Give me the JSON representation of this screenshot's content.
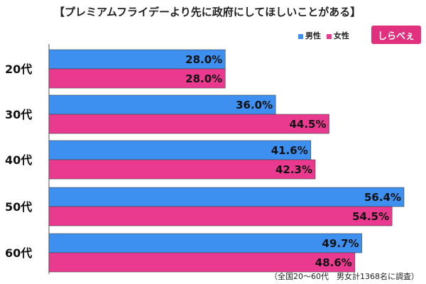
{
  "title": "【プレミアムフライデーより先に政府にしてほしいことがある】",
  "legend": {
    "male": "男性",
    "female": "女性"
  },
  "logo": {
    "text": "しらべぇ"
  },
  "footnote": "（全国20〜60代　男女計1368名に調査）",
  "colors": {
    "male": "#3d8ff0",
    "female": "#ea3a8f",
    "bar_border": "#444444"
  },
  "chart_data": {
    "type": "bar",
    "orientation": "horizontal",
    "categories": [
      "20代",
      "30代",
      "40代",
      "50代",
      "60代"
    ],
    "series": [
      {
        "name": "男性",
        "values": [
          28.0,
          36.0,
          41.6,
          56.4,
          49.7
        ],
        "labels": [
          "28.0%",
          "36.0%",
          "41.6%",
          "56.4%",
          "49.7%"
        ]
      },
      {
        "name": "女性",
        "values": [
          28.0,
          44.5,
          42.3,
          54.5,
          48.6
        ],
        "labels": [
          "28.0%",
          "44.5%",
          "42.3%",
          "54.5%",
          "48.6%"
        ]
      }
    ],
    "xlim": [
      0,
      60
    ],
    "grid": false,
    "legend_position": "top-right"
  }
}
